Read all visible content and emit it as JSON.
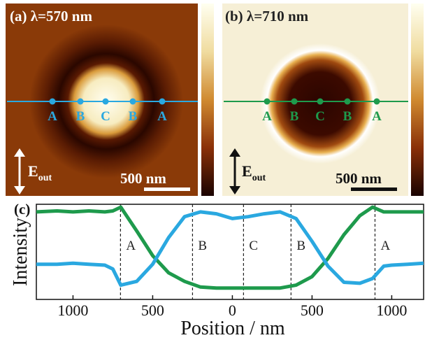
{
  "panels": [
    {
      "label": "(a) λ=570 nm",
      "points": [
        "A",
        "B",
        "C",
        "B",
        "A"
      ],
      "field": "E",
      "field_sub": "out",
      "scale": "500 nm"
    },
    {
      "label": "(b) λ=710 nm",
      "points": [
        "A",
        "B",
        "C",
        "B",
        "A"
      ],
      "field": "E",
      "field_sub": "out",
      "scale": "500 nm"
    }
  ],
  "chart_data": {
    "type": "line",
    "label": "(c)",
    "ylabel": "Intensity",
    "xlabel": "Position / nm",
    "x": [
      -1230,
      -1100,
      -1000,
      -900,
      -800,
      -750,
      -700,
      -600,
      -500,
      -400,
      -300,
      -200,
      -100,
      0,
      100,
      200,
      300,
      400,
      500,
      600,
      700,
      800,
      880,
      950,
      1000,
      1100,
      1200
    ],
    "series": [
      {
        "color": "#1e9a4c",
        "values": [
          0.92,
          0.93,
          0.92,
          0.93,
          0.92,
          0.93,
          0.97,
          0.72,
          0.46,
          0.28,
          0.19,
          0.13,
          0.12,
          0.12,
          0.12,
          0.12,
          0.12,
          0.15,
          0.24,
          0.43,
          0.68,
          0.88,
          0.97,
          0.92,
          0.92,
          0.92,
          0.92
        ]
      },
      {
        "color": "#2aa8e0",
        "values": [
          0.37,
          0.37,
          0.38,
          0.37,
          0.36,
          0.32,
          0.15,
          0.19,
          0.37,
          0.65,
          0.87,
          0.92,
          0.9,
          0.85,
          0.87,
          0.9,
          0.92,
          0.85,
          0.61,
          0.35,
          0.18,
          0.17,
          0.22,
          0.35,
          0.36,
          0.37,
          0.38
        ]
      }
    ],
    "xlim": [
      -1230,
      1200
    ],
    "ylim": [
      0,
      1
    ],
    "xticks": [
      {
        "value": -1000,
        "label": "1000"
      },
      {
        "value": -500,
        "label": "500"
      },
      0,
      500,
      1000
    ],
    "markers": [
      {
        "x": -702,
        "label": "A"
      },
      {
        "x": -250,
        "label": "B"
      },
      {
        "x": 70,
        "label": "C"
      },
      {
        "x": 368,
        "label": "B"
      },
      {
        "x": 895,
        "label": "A"
      }
    ]
  }
}
